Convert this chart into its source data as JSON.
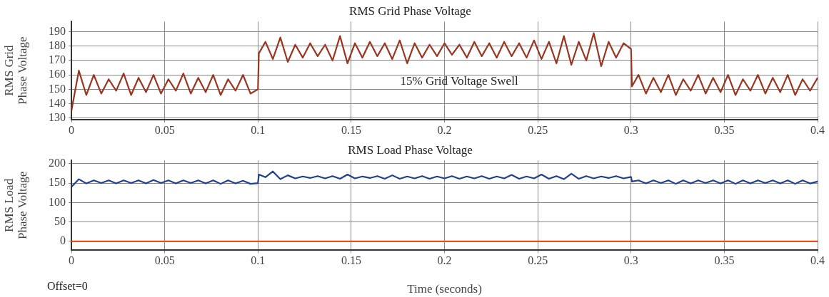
{
  "chart_data": [
    {
      "type": "line",
      "title": "RMS Grid Phase Voltage",
      "ylabel": "RMS Grid\nPhase Voltage",
      "xlim": [
        0,
        0.4
      ],
      "xticks": [
        0,
        0.05,
        0.1,
        0.15,
        0.2,
        0.25,
        0.3,
        0.35,
        0.4
      ],
      "ylim": [
        129,
        197
      ],
      "yticks": [
        130,
        140,
        150,
        160,
        170,
        180,
        190
      ],
      "grid": true,
      "marker": "none",
      "annotations": [
        "15% Grid Voltage Swell"
      ],
      "series": [
        {
          "color": "#9a3520",
          "x": [
            0,
            0.004,
            0.008,
            0.012,
            0.016,
            0.02,
            0.024,
            0.028,
            0.032,
            0.036,
            0.04,
            0.044,
            0.048,
            0.052,
            0.056,
            0.06,
            0.064,
            0.068,
            0.072,
            0.076,
            0.08,
            0.084,
            0.088,
            0.092,
            0.096,
            0.1,
            0.1005,
            0.104,
            0.108,
            0.112,
            0.116,
            0.12,
            0.124,
            0.128,
            0.132,
            0.136,
            0.14,
            0.144,
            0.148,
            0.152,
            0.156,
            0.16,
            0.164,
            0.168,
            0.172,
            0.176,
            0.18,
            0.184,
            0.188,
            0.192,
            0.196,
            0.2,
            0.204,
            0.208,
            0.212,
            0.216,
            0.22,
            0.224,
            0.228,
            0.232,
            0.236,
            0.24,
            0.244,
            0.248,
            0.252,
            0.256,
            0.26,
            0.264,
            0.268,
            0.272,
            0.276,
            0.28,
            0.284,
            0.288,
            0.292,
            0.296,
            0.3,
            0.3005,
            0.304,
            0.308,
            0.312,
            0.316,
            0.32,
            0.324,
            0.328,
            0.332,
            0.336,
            0.34,
            0.344,
            0.348,
            0.352,
            0.356,
            0.36,
            0.364,
            0.368,
            0.372,
            0.376,
            0.38,
            0.384,
            0.388,
            0.392,
            0.396,
            0.4
          ],
          "values": [
            135,
            163,
            146,
            160,
            147,
            157,
            149,
            161,
            146,
            158,
            148,
            160,
            147,
            157,
            149,
            161,
            147,
            158,
            148,
            160,
            146,
            157,
            149,
            160,
            147,
            150,
            175,
            183,
            171,
            186,
            169,
            181,
            172,
            182,
            173,
            181,
            170,
            187,
            168,
            182,
            172,
            183,
            173,
            182,
            171,
            184,
            168,
            182,
            172,
            181,
            173,
            182,
            174,
            181,
            172,
            183,
            173,
            182,
            172,
            183,
            173,
            182,
            172,
            184,
            171,
            183,
            168,
            187,
            167,
            183,
            170,
            189,
            166,
            183,
            172,
            182,
            178,
            152,
            160,
            147,
            158,
            148,
            160,
            146,
            157,
            149,
            160,
            147,
            158,
            148,
            160,
            146,
            157,
            149,
            160,
            147,
            158,
            148,
            160,
            146,
            157,
            149,
            158
          ]
        }
      ]
    },
    {
      "type": "line",
      "title": "RMS Load Phase Voltage",
      "ylabel": "RMS Load\nPhase Voltage",
      "xlabel": "Time (seconds)",
      "xlim": [
        0,
        0.4
      ],
      "xticks": [
        0,
        0.05,
        0.1,
        0.15,
        0.2,
        0.25,
        0.3,
        0.35,
        0.4
      ],
      "ylim": [
        -23,
        208
      ],
      "yticks": [
        0,
        50,
        100,
        150,
        200
      ],
      "grid": true,
      "marker": "none",
      "annotations": [
        "Offset=0"
      ],
      "series": [
        {
          "color": "#213f8b",
          "x": [
            0,
            0.004,
            0.008,
            0.012,
            0.016,
            0.02,
            0.024,
            0.028,
            0.032,
            0.036,
            0.04,
            0.044,
            0.048,
            0.052,
            0.056,
            0.06,
            0.064,
            0.068,
            0.072,
            0.076,
            0.08,
            0.084,
            0.088,
            0.092,
            0.096,
            0.1,
            0.1005,
            0.104,
            0.108,
            0.112,
            0.116,
            0.12,
            0.124,
            0.128,
            0.132,
            0.136,
            0.14,
            0.144,
            0.148,
            0.152,
            0.156,
            0.16,
            0.164,
            0.168,
            0.172,
            0.176,
            0.18,
            0.184,
            0.188,
            0.192,
            0.196,
            0.2,
            0.204,
            0.208,
            0.212,
            0.216,
            0.22,
            0.224,
            0.228,
            0.232,
            0.236,
            0.24,
            0.244,
            0.248,
            0.252,
            0.256,
            0.26,
            0.264,
            0.268,
            0.272,
            0.276,
            0.28,
            0.284,
            0.288,
            0.292,
            0.296,
            0.3,
            0.3005,
            0.304,
            0.308,
            0.312,
            0.316,
            0.32,
            0.324,
            0.328,
            0.332,
            0.336,
            0.34,
            0.344,
            0.348,
            0.352,
            0.356,
            0.36,
            0.364,
            0.368,
            0.372,
            0.376,
            0.38,
            0.384,
            0.388,
            0.392,
            0.396,
            0.4
          ],
          "values": [
            140,
            160,
            149,
            157,
            150,
            157,
            149,
            157,
            150,
            157,
            149,
            158,
            150,
            157,
            149,
            157,
            150,
            157,
            149,
            157,
            148,
            157,
            149,
            156,
            148,
            150,
            172,
            165,
            180,
            160,
            170,
            162,
            167,
            163,
            168,
            162,
            168,
            161,
            172,
            162,
            167,
            163,
            168,
            161,
            170,
            161,
            167,
            162,
            168,
            161,
            167,
            162,
            168,
            161,
            167,
            162,
            168,
            161,
            167,
            162,
            171,
            161,
            167,
            162,
            172,
            161,
            168,
            160,
            174,
            161,
            168,
            162,
            167,
            163,
            168,
            162,
            166,
            154,
            157,
            149,
            157,
            150,
            157,
            148,
            157,
            149,
            157,
            150,
            157,
            149,
            157,
            148,
            157,
            149,
            157,
            150,
            157,
            149,
            157,
            148,
            157,
            149,
            154
          ]
        },
        {
          "color": "#e8501e",
          "x": [
            0,
            0.4
          ],
          "values": [
            0,
            0
          ]
        }
      ]
    }
  ]
}
